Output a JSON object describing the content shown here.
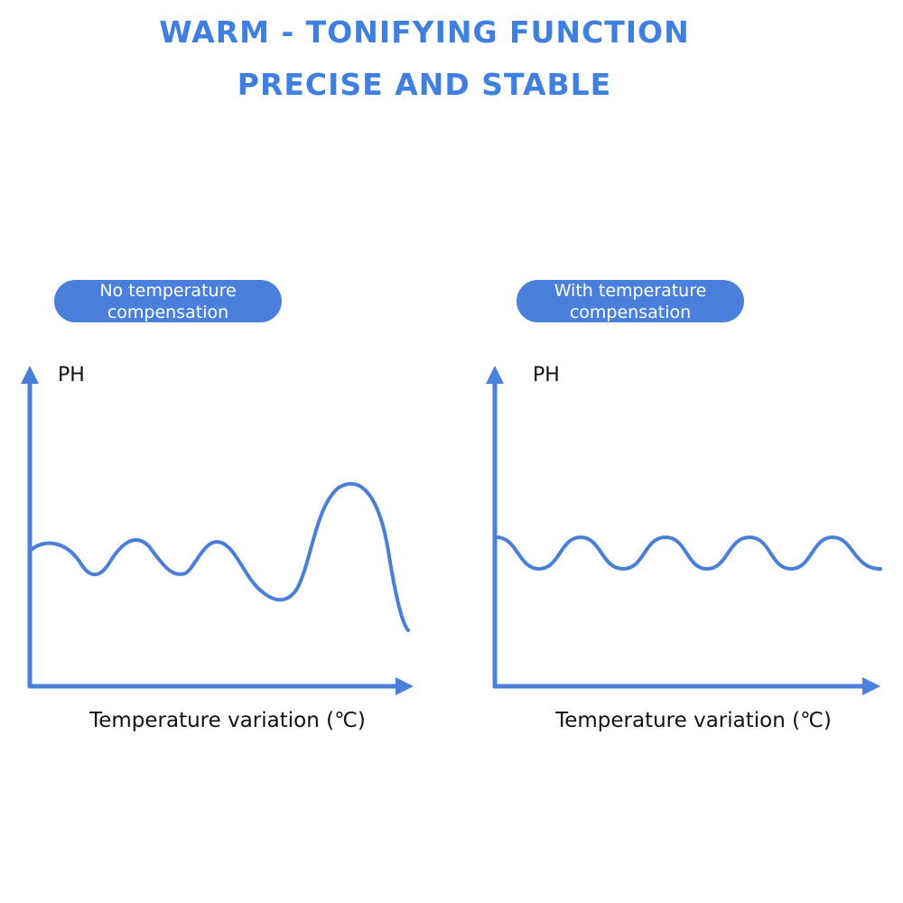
{
  "header": {
    "title": "WARM - TONIFYING FUNCTION",
    "subtitle": "PRECISE AND STABLE"
  },
  "panels": [
    {
      "badge": "No temperature compensation",
      "y_label": "PH",
      "x_label": "Temperature variation (℃)"
    },
    {
      "badge": "With temperature compensation",
      "y_label": "PH",
      "x_label": "Temperature variation (℃)"
    }
  ]
}
